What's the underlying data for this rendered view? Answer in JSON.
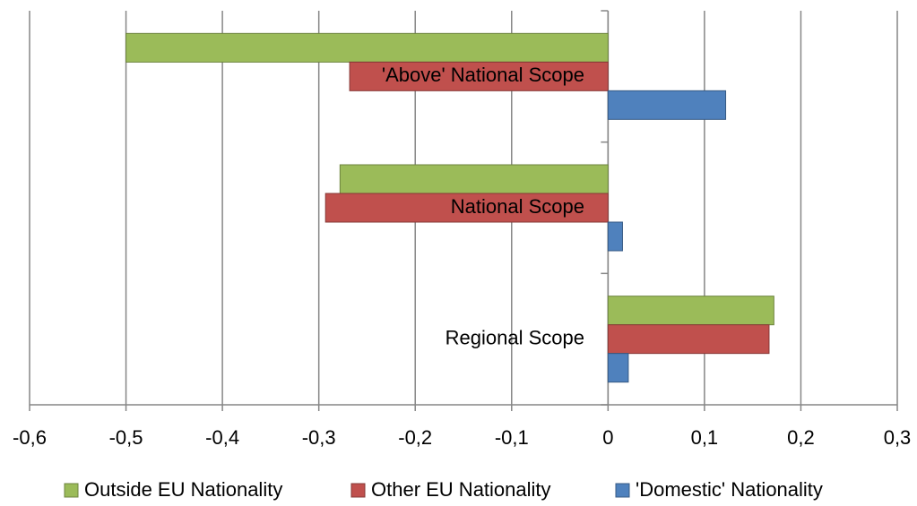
{
  "chart_data": {
    "type": "hbar",
    "categories": [
      "'Above' National Scope",
      "National Scope",
      "Regional Scope"
    ],
    "series": [
      {
        "name": "Outside EU Nationality",
        "color": "#9bbb59",
        "values": [
          -0.5,
          -0.278,
          0.172
        ]
      },
      {
        "name": "Other EU Nationality",
        "color": "#c0504d",
        "values": [
          -0.268,
          -0.293,
          0.167
        ]
      },
      {
        "name": "'Domestic' Nationality",
        "color": "#4f81bd",
        "values": [
          0.122,
          0.015,
          0.021
        ]
      }
    ],
    "xlim": [
      -0.6,
      0.3
    ],
    "xticks": [
      {
        "value": -0.6,
        "label": "-0,6"
      },
      {
        "value": -0.5,
        "label": "-0,5"
      },
      {
        "value": -0.4,
        "label": "-0,4"
      },
      {
        "value": -0.3,
        "label": "-0,3"
      },
      {
        "value": -0.2,
        "label": "-0,2"
      },
      {
        "value": -0.1,
        "label": "-0,1"
      },
      0,
      {
        "value": 0.1,
        "label": "0,1"
      },
      {
        "value": 0.2,
        "label": "0,2"
      },
      {
        "value": 0.3,
        "label": "0,3"
      }
    ],
    "grid": true,
    "legend": "bottom"
  }
}
